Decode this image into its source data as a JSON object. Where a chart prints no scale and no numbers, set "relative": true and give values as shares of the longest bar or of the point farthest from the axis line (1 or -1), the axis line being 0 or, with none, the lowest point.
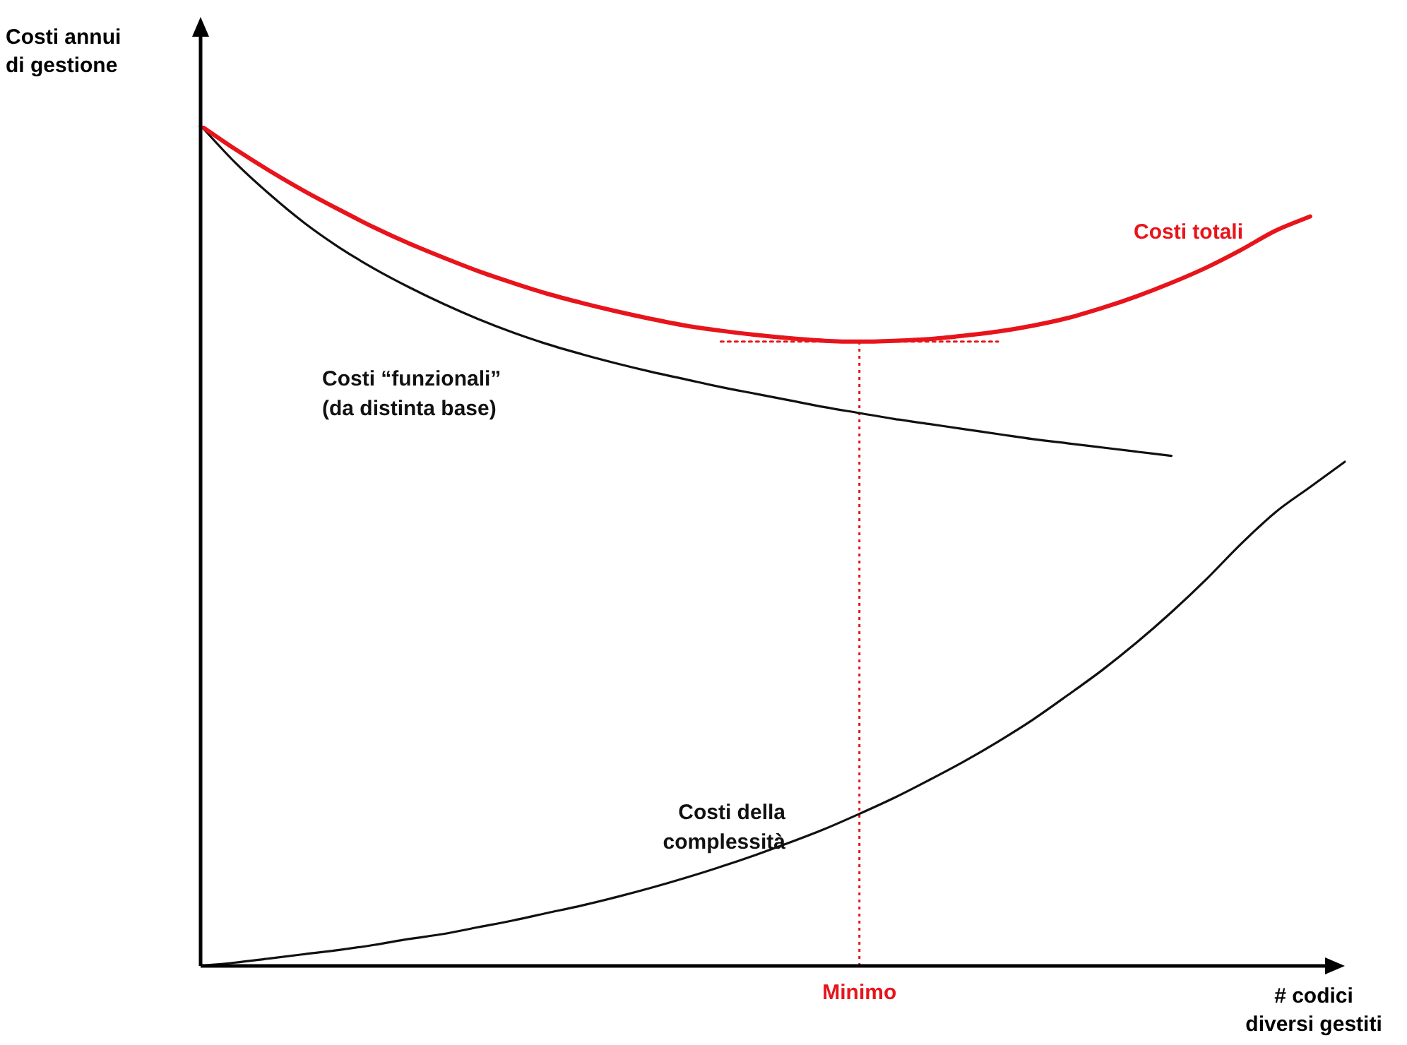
{
  "chart_data": {
    "type": "line",
    "relative": true,
    "xlabel": "# codici\ndiversi gestiti",
    "ylabel": "Costi annui\ndi gestione",
    "categories": [
      null,
      null,
      null,
      null,
      null,
      null,
      null,
      null,
      null,
      null,
      null,
      null,
      null,
      null,
      null,
      null,
      null,
      null,
      null,
      null,
      null,
      null,
      null,
      null,
      null,
      null,
      null,
      null,
      null,
      null,
      null,
      null,
      null,
      null
    ],
    "series": [
      {
        "name": "Costi totali",
        "color": "#e8141b",
        "values": [
          1,
          0.972,
          0.946,
          0.922,
          0.9,
          0.879,
          0.86,
          0.843,
          0.827,
          0.813,
          0.8,
          0.789,
          0.779,
          0.77,
          0.762,
          0.756,
          0.751,
          0.747,
          0.744,
          0.743,
          0.744,
          0.746,
          0.75,
          0.755,
          0.762,
          0.771,
          0.783,
          0.797,
          0.813,
          0.831,
          0.852,
          0.875,
          0.892,
          null
        ]
      },
      {
        "name": "Costi “funzionali”\n(da distinta base)",
        "color": "#111111",
        "values": [
          1,
          0.956,
          0.918,
          0.884,
          0.855,
          0.83,
          0.808,
          0.788,
          0.77,
          0.754,
          0.74,
          0.728,
          0.717,
          0.707,
          0.698,
          0.689,
          0.681,
          0.673,
          0.665,
          0.658,
          0.651,
          0.645,
          0.639,
          0.633,
          0.627,
          0.622,
          0.617,
          0.612,
          0.607,
          null,
          null,
          null,
          null,
          null
        ]
      },
      {
        "name": "Costi della\ncomplessità",
        "color": "#111111",
        "values": [
          0,
          0.004,
          0.009,
          0.014,
          0.019,
          0.025,
          0.032,
          0.038,
          0.046,
          0.054,
          0.063,
          0.072,
          0.082,
          0.093,
          0.105,
          0.118,
          0.132,
          0.147,
          0.163,
          0.181,
          0.2,
          0.221,
          0.243,
          0.267,
          0.293,
          0.322,
          0.352,
          0.385,
          0.421,
          0.46,
          0.502,
          0.54,
          0.57,
          0.6
        ]
      },
      {
        "color": "#e8141b",
        "line_style": "dotted",
        "values": [
          null,
          null,
          null,
          null,
          null,
          null,
          null,
          null,
          null,
          null,
          null,
          null,
          null,
          null,
          null,
          0.743,
          0.743,
          0.743,
          0.743,
          0.743,
          0.743,
          0.743,
          0.743,
          0.743,
          null,
          null,
          null,
          null,
          null,
          null,
          null,
          null,
          null,
          null
        ]
      }
    ],
    "ref_lines": [
      {
        "axis": "x",
        "label": "Minimo",
        "color": "#e8141b",
        "line_style": "dotted"
      }
    ],
    "legend": false,
    "marker": "none",
    "line_style": "solid"
  }
}
